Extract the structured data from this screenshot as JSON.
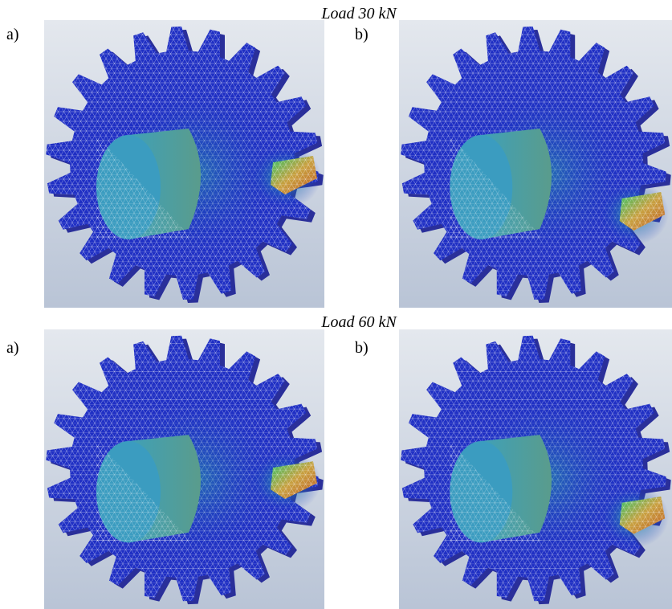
{
  "rows": [
    {
      "title": "Load 30 kN",
      "panels": [
        {
          "label": "a)"
        },
        {
          "label": "b)"
        }
      ]
    },
    {
      "title": "Load 60 kN",
      "panels": [
        {
          "label": "a)"
        },
        {
          "label": "b)"
        }
      ]
    }
  ]
}
